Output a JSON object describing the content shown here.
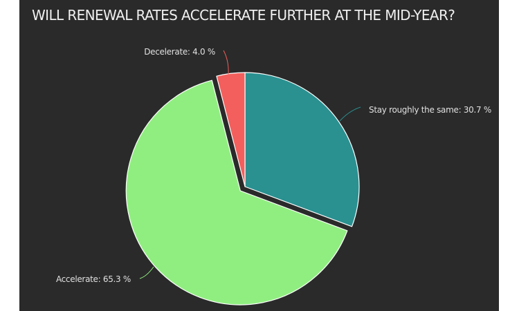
{
  "chart_data": {
    "type": "pie",
    "title": "WILL RENEWAL RATES ACCELERATE FURTHER AT THE MID-YEAR?",
    "categories": [
      "Stay roughly the same",
      "Accelerate",
      "Decelerate"
    ],
    "values": [
      30.7,
      65.3,
      4.0
    ],
    "unit": "%",
    "colors": [
      "#2a9090",
      "#90ee80",
      "#f25f5c"
    ],
    "labels": [
      "Stay roughly the same: 30.7 %",
      "Accelerate: 65.3 %",
      "Decelerate: 4.0 %"
    ],
    "sliced": "Accelerate",
    "legend": "none"
  },
  "theme": {
    "background": "#2a2a2a",
    "title_color": "#f0f0f0",
    "label_color": "#e0e0e0"
  }
}
